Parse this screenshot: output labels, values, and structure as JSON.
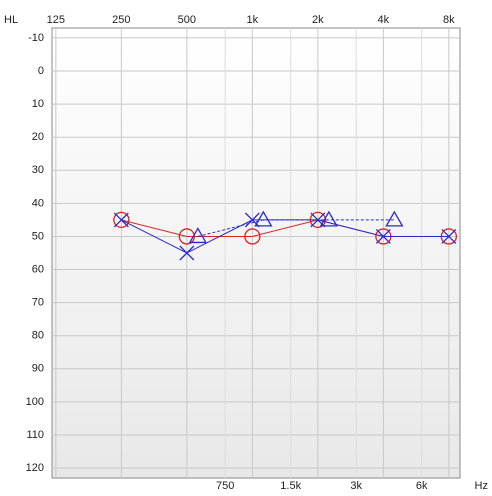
{
  "chart_data": {
    "type": "audiogram",
    "y_label": "HL",
    "x_label": "Hz",
    "xscale": "log",
    "xlim": [
      120,
      9000
    ],
    "ylim": [
      -13,
      123
    ],
    "y_inverted": true,
    "grid": true,
    "xticks_top": [
      125,
      250,
      500,
      {
        "value": 1000,
        "label": "1k"
      },
      {
        "value": 2000,
        "label": "2k"
      },
      {
        "value": 4000,
        "label": "4k"
      },
      {
        "value": 8000,
        "label": "8k"
      }
    ],
    "xticks_bottom": [
      750,
      {
        "value": 1500,
        "label": "1.5k"
      },
      {
        "value": 3000,
        "label": "3k"
      },
      {
        "value": 6000,
        "label": "6k"
      }
    ],
    "yticks": [
      -10,
      0,
      10,
      20,
      30,
      40,
      50,
      60,
      70,
      80,
      90,
      100,
      110,
      120
    ],
    "series": [
      {
        "color": "#e02020",
        "marker": "circle",
        "dashed": false,
        "x": [
          250,
          500,
          1000,
          2000,
          4000,
          8000
        ],
        "values": [
          45,
          50,
          50,
          45,
          50,
          50
        ]
      },
      {
        "color": "#2a2acc",
        "marker": "cross",
        "dashed": false,
        "x": [
          250,
          500,
          1000,
          2000,
          4000,
          8000
        ],
        "values": [
          45,
          55,
          45,
          45,
          50,
          50
        ]
      },
      {
        "color": "#2a2acc",
        "marker": "triangle",
        "dashed": true,
        "x": [
          500,
          1000,
          2000,
          4000
        ],
        "values": [
          50,
          45,
          45,
          45
        ]
      }
    ]
  }
}
